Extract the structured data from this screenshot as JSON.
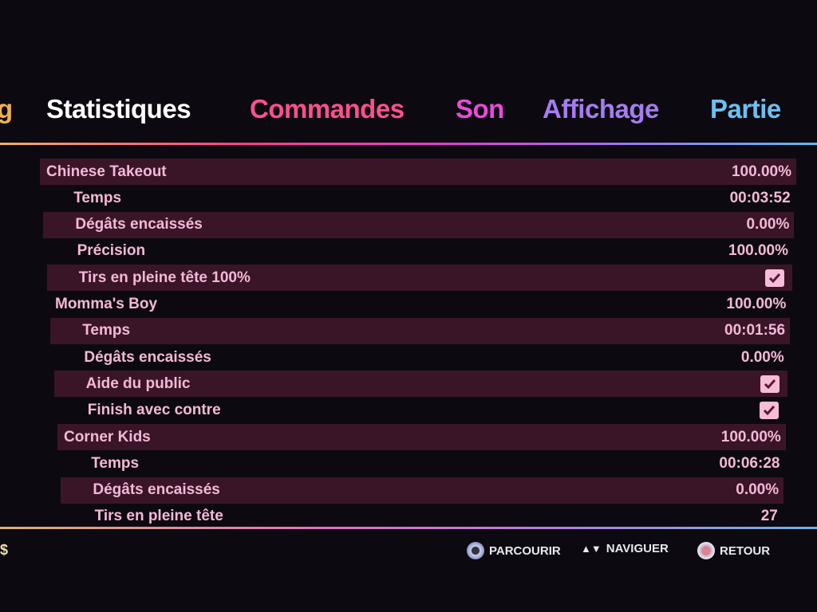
{
  "tabs": [
    {
      "label": "g",
      "color": "#f0b050"
    },
    {
      "label": "Statistiques",
      "color": "#ffffff",
      "active": true
    },
    {
      "label": "Commandes",
      "color": "#ff4f8f"
    },
    {
      "label": "Son",
      "color": "#e84ad8"
    },
    {
      "label": "Affichage",
      "color": "#a67cf0"
    },
    {
      "label": "Partie",
      "color": "#6cc0f4"
    }
  ],
  "rows": [
    {
      "label": "Chinese Takeout",
      "value": "100.00%",
      "level": 0,
      "highlight": true
    },
    {
      "label": "Temps",
      "value": "00:03:52",
      "level": 1,
      "highlight": false
    },
    {
      "label": "Dégâts encaissés",
      "value": "0.00%",
      "level": 1,
      "highlight": true
    },
    {
      "label": "Précision",
      "value": "100.00%",
      "level": 1,
      "highlight": false
    },
    {
      "label": "Tirs en pleine tête 100%",
      "checked": true,
      "level": 1,
      "highlight": true
    },
    {
      "label": "Momma's Boy",
      "value": "100.00%",
      "level": 0,
      "highlight": false
    },
    {
      "label": "Temps",
      "value": "00:01:56",
      "level": 1,
      "highlight": true
    },
    {
      "label": "Dégâts encaissés",
      "value": "0.00%",
      "level": 1,
      "highlight": false
    },
    {
      "label": "Aide du public",
      "checked": true,
      "level": 1,
      "highlight": true
    },
    {
      "label": "Finish avec contre",
      "checked": true,
      "level": 1,
      "highlight": false
    },
    {
      "label": "Corner Kids",
      "value": "100.00%",
      "level": 0,
      "highlight": true
    },
    {
      "label": "Temps",
      "value": "00:06:28",
      "level": 1,
      "highlight": false
    },
    {
      "label": "Dégâts encaissés",
      "value": "0.00%",
      "level": 1,
      "highlight": true
    },
    {
      "label": "Tirs en pleine tête",
      "value": "27",
      "level": 1,
      "highlight": false
    }
  ],
  "footer": {
    "left": "$",
    "hints": [
      {
        "icon": "r-stick-icon",
        "label": "PARCOURIR"
      },
      {
        "icon": "dpad-up-down-icon",
        "label": "NAVIGUER",
        "glyph": "▲▼"
      },
      {
        "icon": "circle-button-icon",
        "label": "RETOUR"
      }
    ]
  }
}
